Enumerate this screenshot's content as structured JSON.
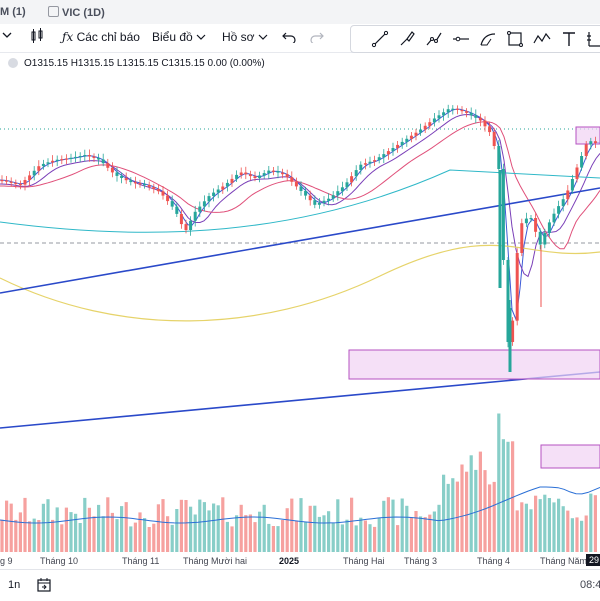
{
  "tabs": [
    {
      "label": "M (1)"
    },
    {
      "label": "VIC (1D)"
    }
  ],
  "toolbar": {
    "indicators_label": "Các chỉ báo",
    "chart_label": "Biểu đồ",
    "profile_label": "Hồ sơ"
  },
  "legend": {
    "ohlc": "O1315.15 H1315.15 L1315.15 C1315.15 0.00 (0.00%)"
  },
  "xaxis": {
    "labels": [
      "g 9",
      "Tháng 10",
      "Tháng 11",
      "Tháng Mười hai",
      "2025",
      "Tháng Hai",
      "Tháng 3",
      "Tháng 4",
      "Tháng Năm",
      "29"
    ]
  },
  "bottombar": {
    "range_label": "1n",
    "time_label": "08:4"
  },
  "colors": {
    "up": "#26a69a",
    "down": "#ef5350",
    "trendline": "#2a49c9",
    "zone_fill": "#f1d3f3",
    "zone_stroke": "#b552c2"
  }
}
